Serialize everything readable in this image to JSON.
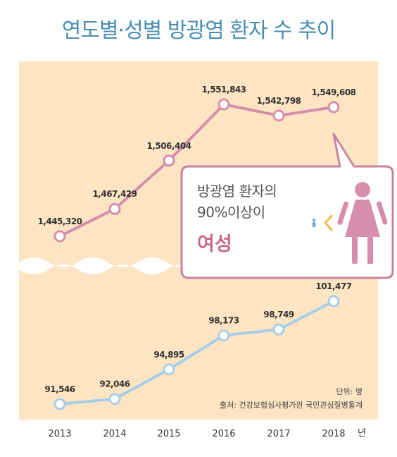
{
  "chart_data": {
    "type": "line",
    "title": "연도별·성별 방광염 환자 수 추이",
    "x": [
      "2013",
      "2014",
      "2015",
      "2016",
      "2017",
      "2018"
    ],
    "x_unit": "년",
    "series": [
      {
        "values": [
          1445320,
          1467429,
          1506404,
          1551843,
          1542798,
          1549608
        ],
        "labels": [
          "1,445,320",
          "1,467,429",
          "1,506,404",
          "1,551,843",
          "1,542,798",
          "1,549,608"
        ],
        "color": "#d58fac"
      },
      {
        "values": [
          91546,
          92046,
          94895,
          98173,
          98749,
          101477
        ],
        "labels": [
          "91,546",
          "92,046",
          "94,895",
          "98,173",
          "98,749",
          "101,477"
        ],
        "color": "#a8cde8"
      }
    ],
    "unit_note": "단위: 명",
    "source": "출처: 건강보험심사평가원 국민관심질병통계",
    "callout": {
      "line1": "방광염 환자의",
      "line2": "90%이상이",
      "emphasis": "여성"
    },
    "colors": {
      "panel": "#fde5c3",
      "title": "#4a8fb5",
      "callout_border": "#c9839f",
      "callout_emphasis": "#c9668c",
      "female_icon": "#d58fac"
    }
  }
}
